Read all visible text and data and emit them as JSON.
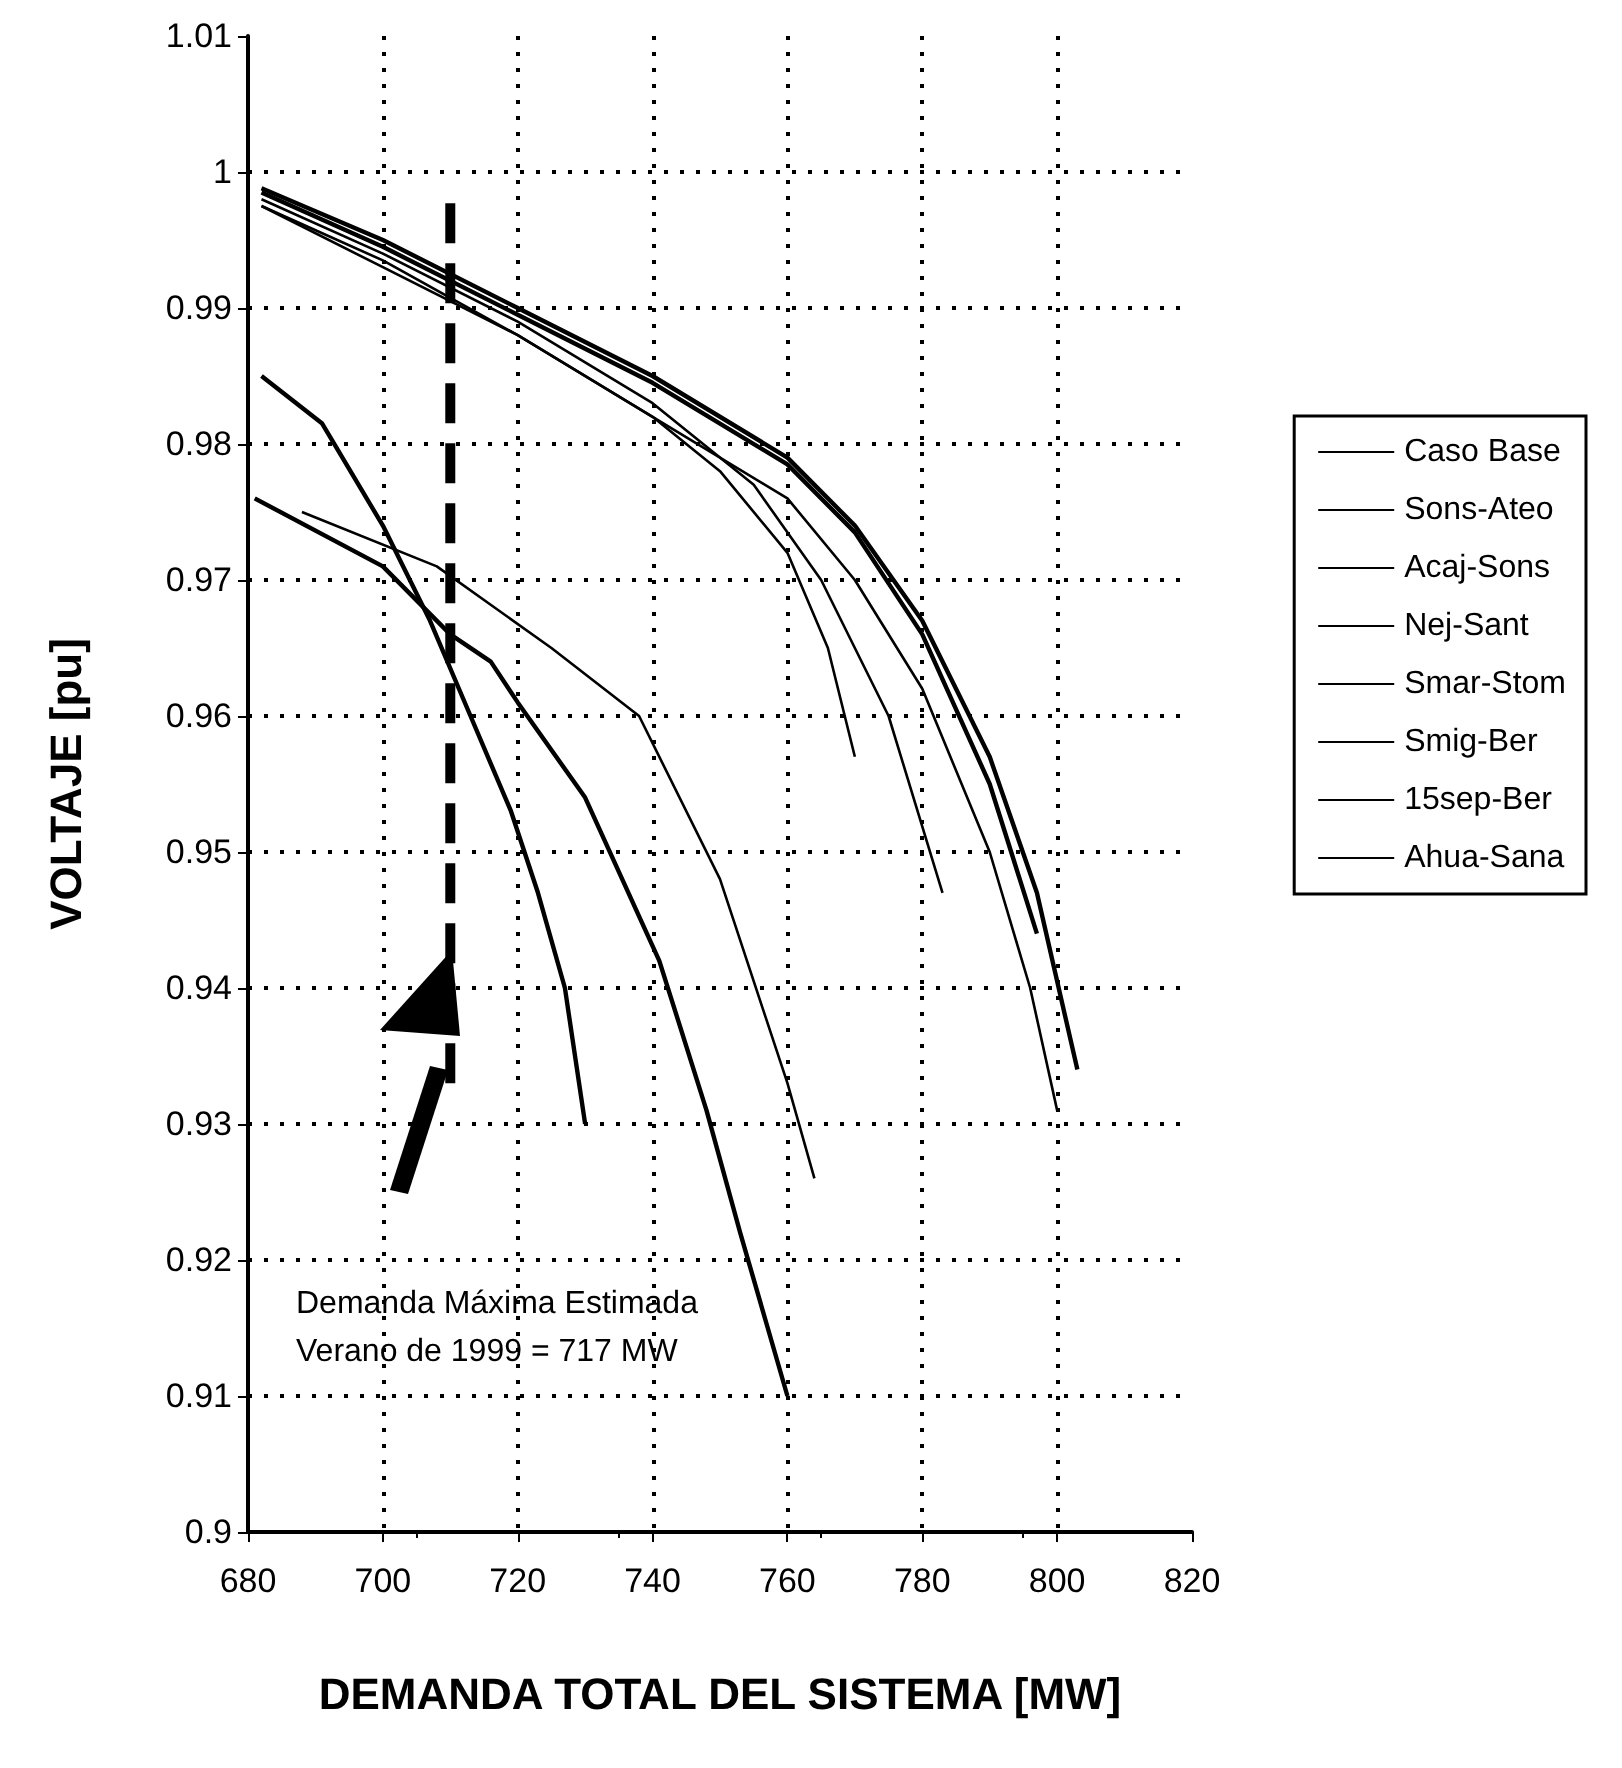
{
  "chart_data": {
    "type": "line",
    "xlabel": "DEMANDA TOTAL DEL SISTEMA [MW]",
    "ylabel": "VOLTAJE [pu]",
    "xlim": [
      680,
      820
    ],
    "xticks": [
      680,
      700,
      720,
      740,
      760,
      780,
      800,
      820
    ],
    "ylim": [
      0.9,
      1.01
    ],
    "yticks": [
      0.9,
      0.91,
      0.92,
      0.93,
      0.94,
      0.95,
      0.96,
      0.97,
      0.98,
      0.99,
      1,
      1.01
    ],
    "grid": true,
    "legend": "right",
    "line_style": "solid",
    "marker": "none",
    "annotations": [
      "Demanda Máxima Estimada\nVerano de 1999 = 717 MW"
    ],
    "series": [
      {
        "name": "Caso Base",
        "color": "#000000",
        "x": [
          682,
          700,
          720,
          740,
          760,
          770,
          780,
          790,
          797,
          803
        ],
        "values": [
          0.9988,
          0.995,
          0.99,
          0.985,
          0.979,
          0.974,
          0.967,
          0.957,
          0.947,
          0.934
        ]
      },
      {
        "name": "Sons-Ateo",
        "color": "#000000",
        "x": [
          682,
          700,
          720,
          740,
          760,
          770,
          780,
          790,
          797
        ],
        "values": [
          0.9985,
          0.9945,
          0.9895,
          0.9845,
          0.9785,
          0.9735,
          0.966,
          0.955,
          0.944
        ]
      },
      {
        "name": "Acaj-Sons",
        "color": "#000000",
        "x": [
          682,
          700,
          720,
          740,
          755,
          765,
          775,
          783
        ],
        "values": [
          0.998,
          0.994,
          0.989,
          0.983,
          0.977,
          0.97,
          0.96,
          0.947
        ]
      },
      {
        "name": "Nej-Sant",
        "color": "#000000",
        "x": [
          682,
          700,
          720,
          740,
          760,
          770,
          780,
          790,
          796,
          800
        ],
        "values": [
          0.9975,
          0.9935,
          0.988,
          0.982,
          0.976,
          0.97,
          0.962,
          0.95,
          0.94,
          0.931
        ]
      },
      {
        "name": "Smar-Stom",
        "color": "#000000",
        "x": [
          682,
          700,
          720,
          740,
          750,
          760,
          766,
          770
        ],
        "values": [
          0.9975,
          0.993,
          0.988,
          0.982,
          0.978,
          0.972,
          0.965,
          0.957
        ]
      },
      {
        "name": "Smig-Ber",
        "color": "#000000",
        "x": [
          682,
          691,
          700,
          707,
          713,
          719,
          723,
          727,
          730
        ],
        "values": [
          0.985,
          0.9815,
          0.974,
          0.967,
          0.96,
          0.953,
          0.947,
          0.94,
          0.93
        ]
      },
      {
        "name": "15sep-Ber",
        "color": "#000000",
        "x": [
          688,
          708,
          725,
          738,
          750,
          760,
          764
        ],
        "values": [
          0.975,
          0.971,
          0.965,
          0.96,
          0.948,
          0.933,
          0.926
        ]
      },
      {
        "name": "Ahua-Sana",
        "color": "#000000",
        "x": [
          681,
          700,
          710,
          716,
          720,
          730,
          741,
          748,
          753,
          760
        ],
        "values": [
          0.976,
          0.971,
          0.966,
          0.964,
          0.961,
          0.954,
          0.942,
          0.931,
          0.922,
          0.91
        ]
      },
      {
        "color": "#000000",
        "line_style": "dashed",
        "x": [
          710,
          710
        ],
        "values": [
          0.933,
          0.998
        ]
      }
    ]
  }
}
